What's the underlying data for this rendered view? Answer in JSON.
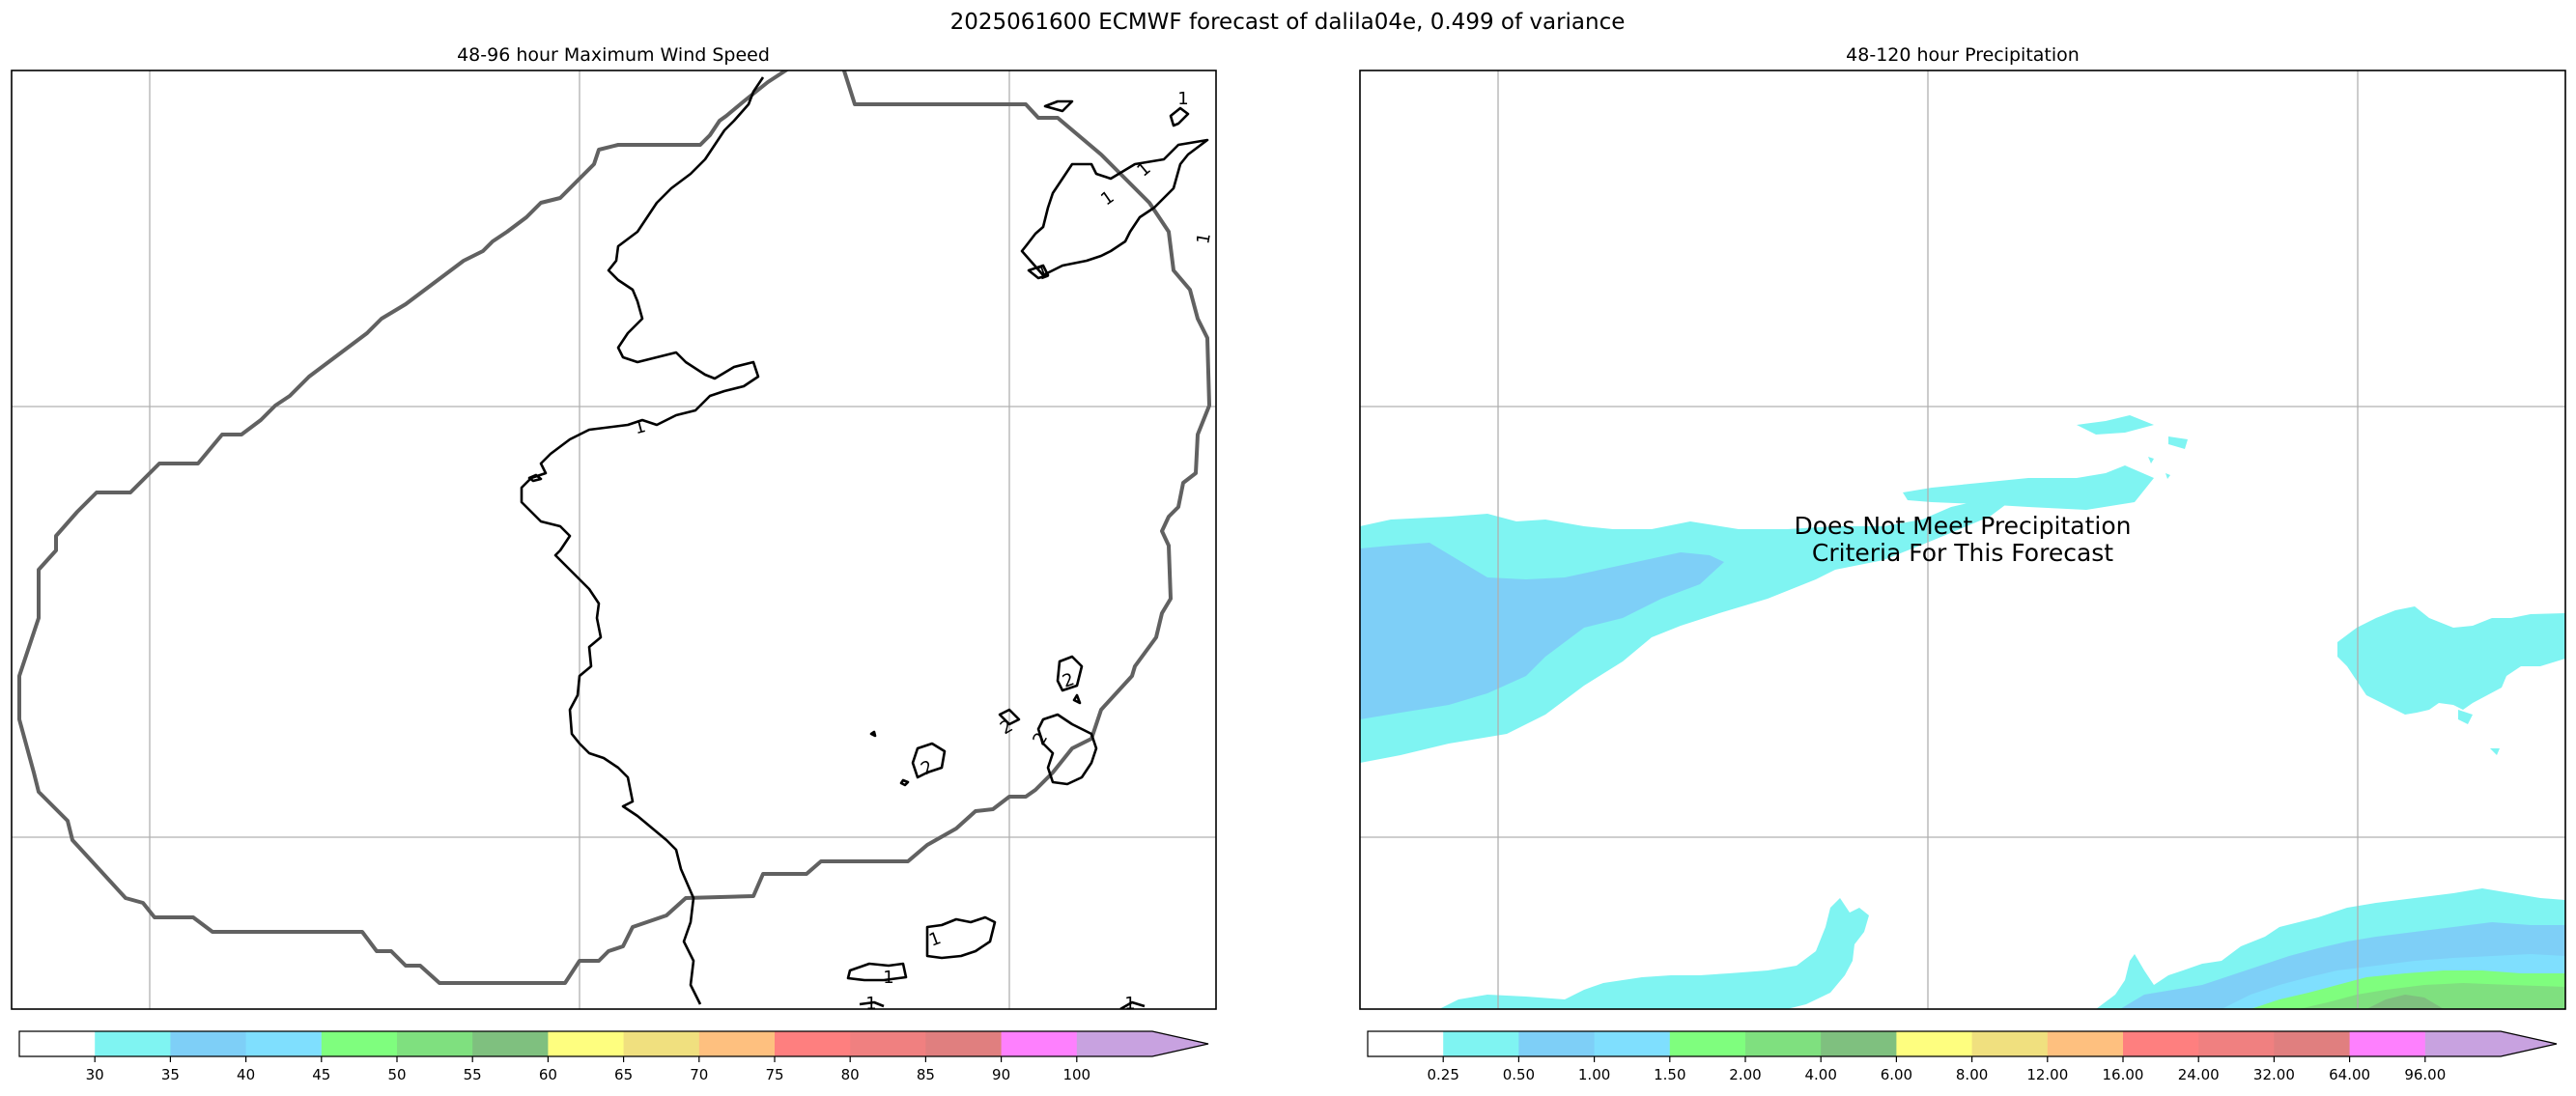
{
  "figure": {
    "suptitle": "2025061600 ECMWF forecast of dalila04e, 0.499 of variance"
  },
  "chart_data": [
    {
      "type": "contour",
      "title": "48-96 hour Maximum Wind Speed",
      "contour_labels": [
        "1",
        "1",
        "1",
        "1",
        "1",
        "1",
        "1",
        "2",
        "2",
        "2",
        "2",
        "1",
        "1",
        "1"
      ],
      "colorbar": {
        "ticks": [
          "30",
          "35",
          "40",
          "45",
          "50",
          "55",
          "60",
          "65",
          "70",
          "75",
          "80",
          "85",
          "90",
          "100"
        ],
        "colors": [
          "#ffffff",
          "#7ff4f2",
          "#7ecff7",
          "#7fdffe",
          "#7ffe7e",
          "#7fe07f",
          "#7fc07f",
          "#fefe7f",
          "#f0e07f",
          "#fec07f",
          "#fe7f7f",
          "#f08080",
          "#e07f7f",
          "#fe80fe",
          "#c8a2e0"
        ],
        "extend": "max"
      }
    },
    {
      "type": "filled-contour",
      "title": "48-120 hour Precipitation",
      "annotation": [
        "Does Not Meet Precipitation",
        "Criteria For This Forecast"
      ],
      "colorbar": {
        "ticks": [
          "0.25",
          "0.50",
          "1.00",
          "1.50",
          "2.00",
          "4.00",
          "6.00",
          "8.00",
          "12.00",
          "16.00",
          "24.00",
          "32.00",
          "64.00",
          "96.00"
        ],
        "colors": [
          "#ffffff",
          "#7ff4f2",
          "#7ecff7",
          "#7fdffe",
          "#7ffe7e",
          "#7fe07f",
          "#7fc07f",
          "#fefe7f",
          "#f0e07f",
          "#fec07f",
          "#fe7f7f",
          "#f08080",
          "#e07f7f",
          "#fe80fe",
          "#c8a2e0"
        ],
        "extend": "max"
      }
    }
  ]
}
